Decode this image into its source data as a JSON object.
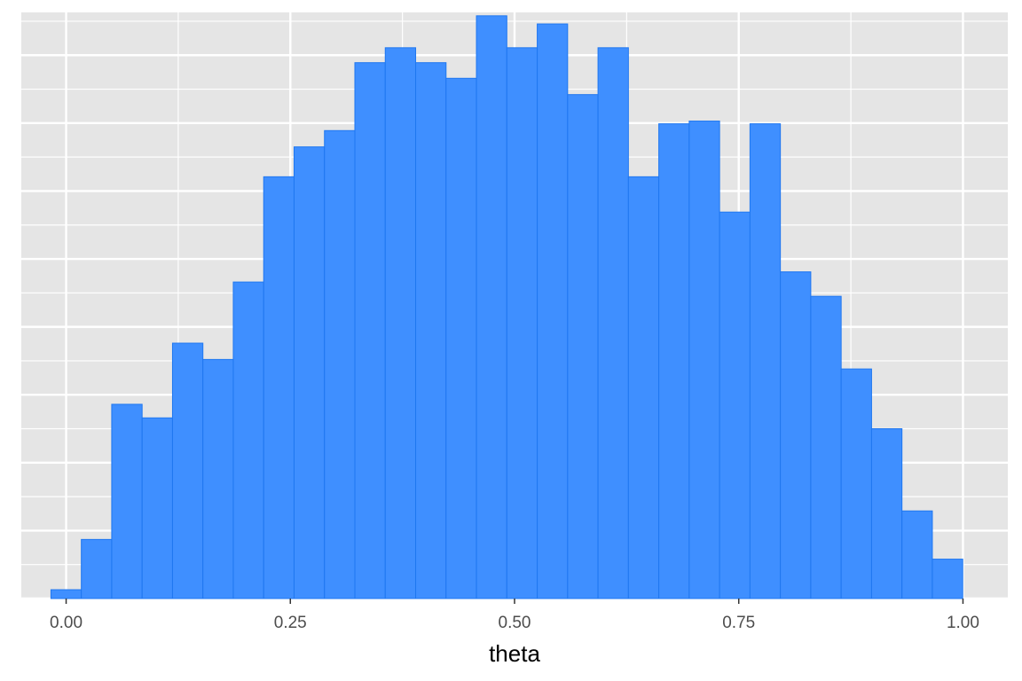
{
  "chart_data": {
    "type": "bar",
    "histogram": true,
    "xlabel": "theta",
    "ylabel": "",
    "xlim": [
      -0.05,
      1.05
    ],
    "ylim": [
      0,
      0.03
    ],
    "x_ticks": [
      0.0,
      0.25,
      0.5,
      0.75,
      1.0
    ],
    "x_tick_labels": [
      "0.00",
      "0.25",
      "0.50",
      "0.75",
      "1.00"
    ],
    "y_ticks_shown": false,
    "bin_width": 0.03389,
    "bin_start": -0.01695,
    "values": [
      0.0013,
      0.0087,
      0.0286,
      0.0266,
      0.0376,
      0.0352,
      0.0466,
      0.0621,
      0.0665,
      0.0689,
      0.0789,
      0.0811,
      0.0789,
      0.0766,
      0.0858,
      0.0811,
      0.0846,
      0.0742,
      0.0811,
      0.0621,
      0.0699,
      0.0703,
      0.0569,
      0.0699,
      0.0481,
      0.0445,
      0.0338,
      0.025,
      0.0129,
      0.0058
    ],
    "grid": true,
    "fill_color": "#3f8fff",
    "edge_color": "#1f77f0",
    "panel_color": "#e5e5e5",
    "grid_color": "#ffffff"
  }
}
